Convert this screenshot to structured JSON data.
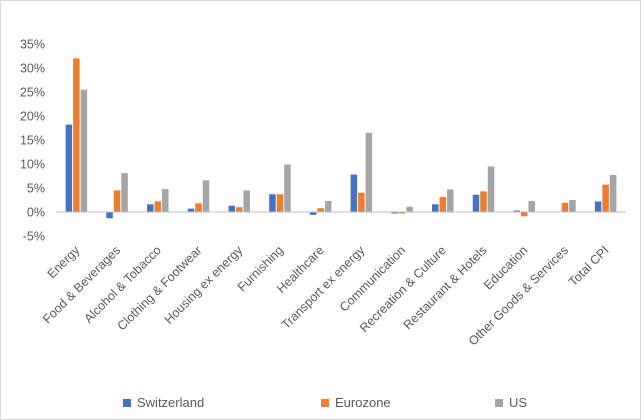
{
  "chart_data": {
    "type": "bar",
    "categories": [
      "Energy",
      "Food & Beverages",
      "Alcohol & Tobacco",
      "Clothing & Footwear",
      "Housing ex energy",
      "Furnishing",
      "Healthcare",
      "Transport ex energy",
      "Communication",
      "Recreation & Culture",
      "Restaurant & Hotels",
      "Education",
      "Other Goods & Services",
      "Total CPI"
    ],
    "series": [
      {
        "name": "Switzerland",
        "color": "#4472C4",
        "values": [
          18.2,
          -1.3,
          1.6,
          0.7,
          1.3,
          3.7,
          -0.6,
          7.8,
          -0.3,
          1.6,
          3.6,
          0.3,
          0.0,
          2.2
        ]
      },
      {
        "name": "Eurozone",
        "color": "#ED7D31",
        "values": [
          32.0,
          4.5,
          2.2,
          1.8,
          1.0,
          3.7,
          0.8,
          4.0,
          -0.3,
          3.1,
          4.3,
          -0.9,
          1.9,
          5.7
        ]
      },
      {
        "name": "US",
        "color": "#A5A5A5",
        "values": [
          25.5,
          8.1,
          4.8,
          6.6,
          4.5,
          9.9,
          2.3,
          16.5,
          1.1,
          4.7,
          9.5,
          2.3,
          2.5,
          7.7
        ]
      }
    ],
    "y_ticks": [
      "35%",
      "30%",
      "25%",
      "20%",
      "15%",
      "10%",
      "5%",
      "0%",
      "-5%"
    ],
    "ylim": [
      -5,
      35
    ],
    "grid": false,
    "legend_position": "bottom"
  }
}
